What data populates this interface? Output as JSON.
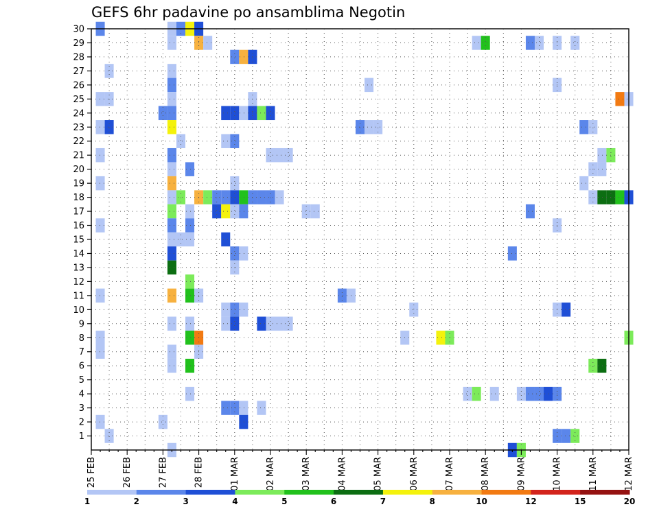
{
  "chart_data": {
    "type": "heatmap",
    "title": "GEFS 6hr padavine po ansamblima Negotin",
    "xlabel": "",
    "ylabel": "",
    "x_tick_labels": [
      "25 FEB",
      "26 FEB",
      "27 FEB",
      "28 FEB",
      "01 MAR",
      "02 MAR",
      "03 MAR",
      "04 MAR",
      "05 MAR",
      "06 MAR",
      "07 MAR",
      "08 MAR",
      "09 MAR",
      "10 MAR",
      "11 MAR",
      "12 MAR"
    ],
    "x_range_days": [
      0,
      15
    ],
    "y_tick_labels": [
      "1",
      "2",
      "3",
      "4",
      "5",
      "6",
      "7",
      "8",
      "9",
      "10",
      "11",
      "12",
      "13",
      "14",
      "15",
      "16",
      "17",
      "18",
      "19",
      "20",
      "21",
      "22",
      "23",
      "24",
      "25",
      "26",
      "27",
      "28",
      "29",
      "30"
    ],
    "y_range": [
      0,
      30
    ],
    "grid": "dotted",
    "colorbar": {
      "labels": [
        "1",
        "2",
        "3",
        "4",
        "5",
        "6",
        "7",
        "8",
        "10",
        "12",
        "15",
        "20"
      ],
      "colors": [
        "#b3c6f5",
        "#5b86ea",
        "#1f4fd6",
        "#7ceb5a",
        "#21c11c",
        "#0c6e12",
        "#f4f20c",
        "#f7b13f",
        "#f27a12",
        "#d3241c",
        "#951211"
      ]
    },
    "cells": [
      {
        "member": 30,
        "day": 0.25,
        "value": 2.5
      },
      {
        "member": 30,
        "day": 2.25,
        "value": 1.5
      },
      {
        "member": 30,
        "day": 2.5,
        "value": 2.5
      },
      {
        "member": 30,
        "day": 2.75,
        "value": 7.5
      },
      {
        "member": 30,
        "day": 3.0,
        "value": 3.5
      },
      {
        "member": 29,
        "day": 2.25,
        "value": 1.5
      },
      {
        "member": 29,
        "day": 3.0,
        "value": 9
      },
      {
        "member": 29,
        "day": 3.25,
        "value": 1.5
      },
      {
        "member": 29,
        "day": 10.75,
        "value": 1.5
      },
      {
        "member": 29,
        "day": 11.0,
        "value": 5.5
      },
      {
        "member": 29,
        "day": 12.25,
        "value": 2.5
      },
      {
        "member": 29,
        "day": 12.5,
        "value": 1.5
      },
      {
        "member": 29,
        "day": 13.0,
        "value": 1.5
      },
      {
        "member": 29,
        "day": 13.5,
        "value": 1.5
      },
      {
        "member": 28,
        "day": 4.0,
        "value": 2.5
      },
      {
        "member": 28,
        "day": 4.25,
        "value": 9
      },
      {
        "member": 28,
        "day": 4.5,
        "value": 3.5
      },
      {
        "member": 27,
        "day": 0.5,
        "value": 1.5
      },
      {
        "member": 27,
        "day": 2.25,
        "value": 1.5
      },
      {
        "member": 26,
        "day": 2.25,
        "value": 2.5
      },
      {
        "member": 26,
        "day": 7.75,
        "value": 1.5
      },
      {
        "member": 26,
        "day": 13.0,
        "value": 1.5
      },
      {
        "member": 25,
        "day": 0.25,
        "value": 1.5
      },
      {
        "member": 25,
        "day": 0.5,
        "value": 1.5
      },
      {
        "member": 25,
        "day": 2.25,
        "value": 1.5
      },
      {
        "member": 25,
        "day": 4.5,
        "value": 1.5
      },
      {
        "member": 25,
        "day": 14.75,
        "value": 11
      },
      {
        "member": 25,
        "day": 15.0,
        "value": 1.5
      },
      {
        "member": 24,
        "day": 2.0,
        "value": 2.5
      },
      {
        "member": 24,
        "day": 2.25,
        "value": 2.5
      },
      {
        "member": 24,
        "day": 3.75,
        "value": 3.5
      },
      {
        "member": 24,
        "day": 4.0,
        "value": 3.5
      },
      {
        "member": 24,
        "day": 4.25,
        "value": 1.5
      },
      {
        "member": 24,
        "day": 4.5,
        "value": 3.5
      },
      {
        "member": 24,
        "day": 4.75,
        "value": 4.5
      },
      {
        "member": 24,
        "day": 5.0,
        "value": 3.5
      },
      {
        "member": 23,
        "day": 0.25,
        "value": 1.5
      },
      {
        "member": 23,
        "day": 0.5,
        "value": 3.5
      },
      {
        "member": 23,
        "day": 2.25,
        "value": 7.5
      },
      {
        "member": 23,
        "day": 7.5,
        "value": 2.5
      },
      {
        "member": 23,
        "day": 7.75,
        "value": 1.5
      },
      {
        "member": 23,
        "day": 8.0,
        "value": 1.5
      },
      {
        "member": 23,
        "day": 13.75,
        "value": 2.5
      },
      {
        "member": 23,
        "day": 14.0,
        "value": 1.5
      },
      {
        "member": 22,
        "day": 2.5,
        "value": 1.5
      },
      {
        "member": 22,
        "day": 3.75,
        "value": 1.5
      },
      {
        "member": 22,
        "day": 4.0,
        "value": 2.5
      },
      {
        "member": 21,
        "day": 0.25,
        "value": 1.5
      },
      {
        "member": 21,
        "day": 2.25,
        "value": 2.5
      },
      {
        "member": 21,
        "day": 5.0,
        "value": 1.5
      },
      {
        "member": 21,
        "day": 5.25,
        "value": 1.5
      },
      {
        "member": 21,
        "day": 5.5,
        "value": 1.5
      },
      {
        "member": 21,
        "day": 14.25,
        "value": 1.5
      },
      {
        "member": 21,
        "day": 14.5,
        "value": 4.5
      },
      {
        "member": 20,
        "day": 2.25,
        "value": 1.5
      },
      {
        "member": 20,
        "day": 2.75,
        "value": 2.5
      },
      {
        "member": 20,
        "day": 14.0,
        "value": 1.5
      },
      {
        "member": 20,
        "day": 14.25,
        "value": 1.5
      },
      {
        "member": 19,
        "day": 0.25,
        "value": 1.5
      },
      {
        "member": 19,
        "day": 2.25,
        "value": 9
      },
      {
        "member": 19,
        "day": 4.0,
        "value": 1.5
      },
      {
        "member": 19,
        "day": 13.75,
        "value": 1.5
      },
      {
        "member": 18,
        "day": 2.25,
        "value": 1.5
      },
      {
        "member": 18,
        "day": 2.5,
        "value": 4.5
      },
      {
        "member": 18,
        "day": 3.0,
        "value": 9
      },
      {
        "member": 18,
        "day": 3.25,
        "value": 4.5
      },
      {
        "member": 18,
        "day": 3.5,
        "value": 2.5
      },
      {
        "member": 18,
        "day": 3.75,
        "value": 2.5
      },
      {
        "member": 18,
        "day": 4.0,
        "value": 3.5
      },
      {
        "member": 18,
        "day": 4.25,
        "value": 5.5
      },
      {
        "member": 18,
        "day": 4.5,
        "value": 2.5
      },
      {
        "member": 18,
        "day": 4.75,
        "value": 2.5
      },
      {
        "member": 18,
        "day": 5.0,
        "value": 2.5
      },
      {
        "member": 18,
        "day": 5.25,
        "value": 1.5
      },
      {
        "member": 18,
        "day": 14.0,
        "value": 1.5
      },
      {
        "member": 18,
        "day": 14.25,
        "value": 6.5
      },
      {
        "member": 18,
        "day": 14.5,
        "value": 6.5
      },
      {
        "member": 18,
        "day": 14.75,
        "value": 5.5
      },
      {
        "member": 18,
        "day": 15.0,
        "value": 3.5
      },
      {
        "member": 17,
        "day": 2.25,
        "value": 4.5
      },
      {
        "member": 17,
        "day": 2.75,
        "value": 1.5
      },
      {
        "member": 17,
        "day": 3.5,
        "value": 3.5
      },
      {
        "member": 17,
        "day": 3.75,
        "value": 7.5
      },
      {
        "member": 17,
        "day": 4.0,
        "value": 1.5
      },
      {
        "member": 17,
        "day": 4.25,
        "value": 2.5
      },
      {
        "member": 17,
        "day": 6.0,
        "value": 1.5
      },
      {
        "member": 17,
        "day": 6.25,
        "value": 1.5
      },
      {
        "member": 17,
        "day": 12.25,
        "value": 2.5
      },
      {
        "member": 16,
        "day": 0.25,
        "value": 1.5
      },
      {
        "member": 16,
        "day": 2.25,
        "value": 2.5
      },
      {
        "member": 16,
        "day": 2.75,
        "value": 2.5
      },
      {
        "member": 16,
        "day": 13.0,
        "value": 1.5
      },
      {
        "member": 15,
        "day": 2.25,
        "value": 1.5
      },
      {
        "member": 15,
        "day": 2.5,
        "value": 1.5
      },
      {
        "member": 15,
        "day": 2.75,
        "value": 1.5
      },
      {
        "member": 15,
        "day": 3.75,
        "value": 3.5
      },
      {
        "member": 14,
        "day": 2.25,
        "value": 3.5
      },
      {
        "member": 14,
        "day": 4.0,
        "value": 2.5
      },
      {
        "member": 14,
        "day": 4.25,
        "value": 1.5
      },
      {
        "member": 14,
        "day": 11.75,
        "value": 2.5
      },
      {
        "member": 13,
        "day": 2.25,
        "value": 6.5
      },
      {
        "member": 13,
        "day": 4.0,
        "value": 1.5
      },
      {
        "member": 12,
        "day": 2.75,
        "value": 4.5
      },
      {
        "member": 11,
        "day": 0.25,
        "value": 1.5
      },
      {
        "member": 11,
        "day": 2.25,
        "value": 9
      },
      {
        "member": 11,
        "day": 2.75,
        "value": 5.5
      },
      {
        "member": 11,
        "day": 3.0,
        "value": 1.5
      },
      {
        "member": 11,
        "day": 7.0,
        "value": 2.5
      },
      {
        "member": 11,
        "day": 7.25,
        "value": 1.5
      },
      {
        "member": 10,
        "day": 3.75,
        "value": 1.5
      },
      {
        "member": 10,
        "day": 4.0,
        "value": 2.5
      },
      {
        "member": 10,
        "day": 4.25,
        "value": 1.5
      },
      {
        "member": 10,
        "day": 9.0,
        "value": 1.5
      },
      {
        "member": 10,
        "day": 13.0,
        "value": 1.5
      },
      {
        "member": 10,
        "day": 13.25,
        "value": 3.5
      },
      {
        "member": 9,
        "day": 2.25,
        "value": 1.5
      },
      {
        "member": 9,
        "day": 2.75,
        "value": 1.5
      },
      {
        "member": 9,
        "day": 3.75,
        "value": 1.5
      },
      {
        "member": 9,
        "day": 4.0,
        "value": 3.5
      },
      {
        "member": 9,
        "day": 4.75,
        "value": 3.5
      },
      {
        "member": 9,
        "day": 5.0,
        "value": 1.5
      },
      {
        "member": 9,
        "day": 5.25,
        "value": 1.5
      },
      {
        "member": 9,
        "day": 5.5,
        "value": 1.5
      },
      {
        "member": 8,
        "day": 0.25,
        "value": 1.5
      },
      {
        "member": 8,
        "day": 2.75,
        "value": 5.5
      },
      {
        "member": 8,
        "day": 3.0,
        "value": 11
      },
      {
        "member": 8,
        "day": 8.75,
        "value": 1.5
      },
      {
        "member": 8,
        "day": 9.75,
        "value": 7.5
      },
      {
        "member": 8,
        "day": 10.0,
        "value": 4.5
      },
      {
        "member": 8,
        "day": 15.0,
        "value": 4.5
      },
      {
        "member": 7,
        "day": 0.25,
        "value": 1.5
      },
      {
        "member": 7,
        "day": 2.25,
        "value": 1.5
      },
      {
        "member": 7,
        "day": 3.0,
        "value": 1.5
      },
      {
        "member": 6,
        "day": 2.25,
        "value": 1.5
      },
      {
        "member": 6,
        "day": 2.75,
        "value": 5.5
      },
      {
        "member": 6,
        "day": 14.0,
        "value": 4.5
      },
      {
        "member": 6,
        "day": 14.25,
        "value": 6.5
      },
      {
        "member": 4,
        "day": 2.75,
        "value": 1.5
      },
      {
        "member": 4,
        "day": 10.5,
        "value": 1.5
      },
      {
        "member": 4,
        "day": 10.75,
        "value": 4.5
      },
      {
        "member": 4,
        "day": 11.25,
        "value": 1.5
      },
      {
        "member": 4,
        "day": 12.0,
        "value": 1.5
      },
      {
        "member": 4,
        "day": 12.25,
        "value": 2.5
      },
      {
        "member": 4,
        "day": 12.5,
        "value": 2.5
      },
      {
        "member": 4,
        "day": 12.75,
        "value": 3.5
      },
      {
        "member": 4,
        "day": 13.0,
        "value": 2.5
      },
      {
        "member": 3,
        "day": 3.75,
        "value": 2.5
      },
      {
        "member": 3,
        "day": 4.0,
        "value": 2.5
      },
      {
        "member": 3,
        "day": 4.25,
        "value": 1.5
      },
      {
        "member": 3,
        "day": 4.75,
        "value": 1.5
      },
      {
        "member": 2,
        "day": 0.25,
        "value": 1.5
      },
      {
        "member": 2,
        "day": 2.0,
        "value": 1.5
      },
      {
        "member": 2,
        "day": 4.25,
        "value": 3.5
      },
      {
        "member": 1,
        "day": 0.5,
        "value": 1.5
      },
      {
        "member": 1,
        "day": 13.0,
        "value": 2.5
      },
      {
        "member": 1,
        "day": 13.25,
        "value": 2.5
      },
      {
        "member": 1,
        "day": 13.5,
        "value": 4.5
      },
      {
        "member": 0,
        "day": 2.25,
        "value": 1.5
      },
      {
        "member": 0,
        "day": 11.75,
        "value": 3.5
      },
      {
        "member": 0,
        "day": 12.0,
        "value": 4.5
      }
    ]
  }
}
